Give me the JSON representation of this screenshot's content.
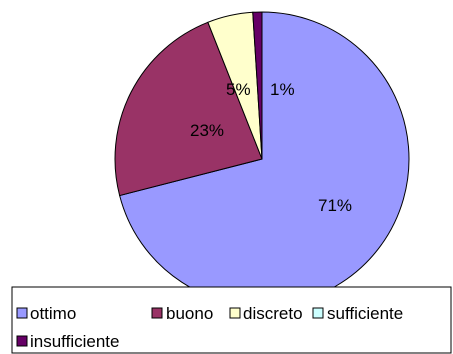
{
  "chart_data": {
    "type": "pie",
    "categories": [
      "ottimo",
      "buono",
      "discreto",
      "sufficiente",
      "insufficiente"
    ],
    "values": [
      71,
      23,
      5,
      0,
      1
    ],
    "data_labels": [
      "71%",
      "23%",
      "5%",
      "",
      "1%"
    ],
    "colors": [
      "#9999FF",
      "#993366",
      "#FFFFCC",
      "#CCFFFF",
      "#660066"
    ],
    "start_angle_deg": 0,
    "direction": "clockwise",
    "legend_position": "bottom",
    "legend_border": true
  }
}
